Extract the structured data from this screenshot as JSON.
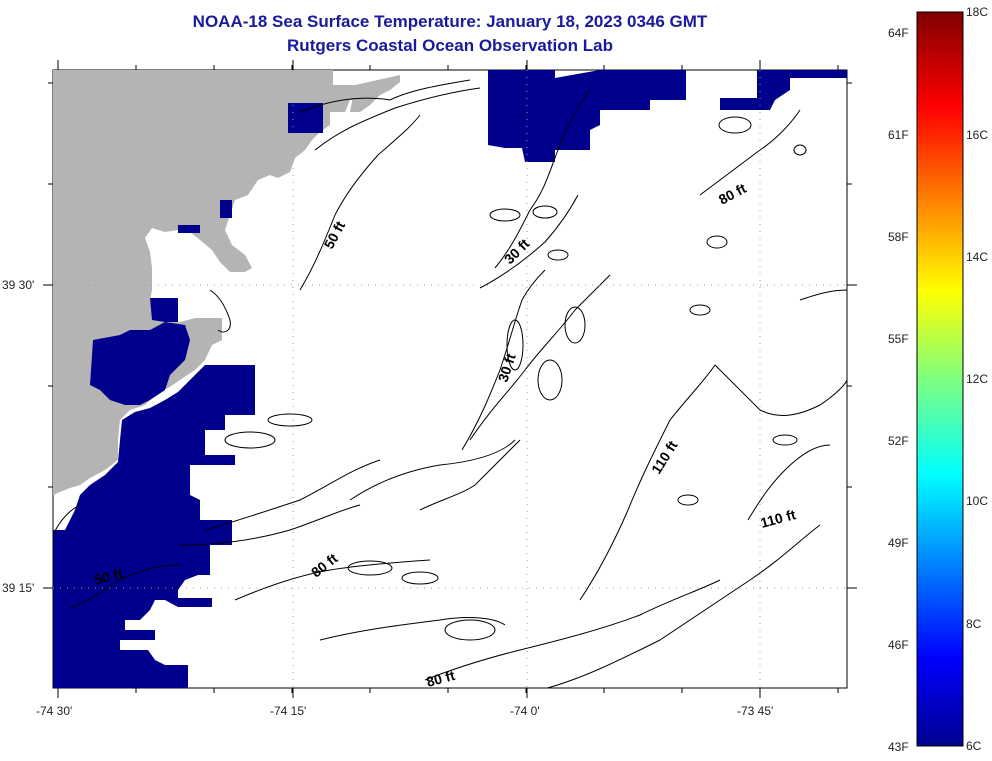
{
  "header": {
    "title": "NOAA-18 Sea Surface Temperature:  January 18, 2023 0346 GMT",
    "subtitle": "Rutgers Coastal Ocean Observation Lab"
  },
  "axes": {
    "lon_labels": [
      "-74 30'",
      "-74 15'",
      "-74 0'",
      "-73 45'"
    ],
    "lat_labels": [
      "39 30'",
      "39 15'"
    ]
  },
  "colorbar": {
    "f_labels": [
      "64F",
      "61F",
      "58F",
      "55F",
      "52F",
      "49F",
      "46F",
      "43F"
    ],
    "c_labels": [
      "18C",
      "16C",
      "14C",
      "12C",
      "10C",
      "8C",
      "6C"
    ],
    "min_f": 43,
    "max_f": 64,
    "min_c": 6,
    "max_c": 18
  },
  "contour_labels": [
    {
      "text": "50 ft"
    },
    {
      "text": "30 ft"
    },
    {
      "text": "80 ft"
    },
    {
      "text": "30 ft"
    },
    {
      "text": "110 ft"
    },
    {
      "text": "110 ft"
    },
    {
      "text": "80 ft"
    },
    {
      "text": "50 ft"
    },
    {
      "text": "80 ft"
    }
  ],
  "colors": {
    "land": "#b4b4b4",
    "sst_cold": "#00008c",
    "title": "#1a1a9c"
  }
}
